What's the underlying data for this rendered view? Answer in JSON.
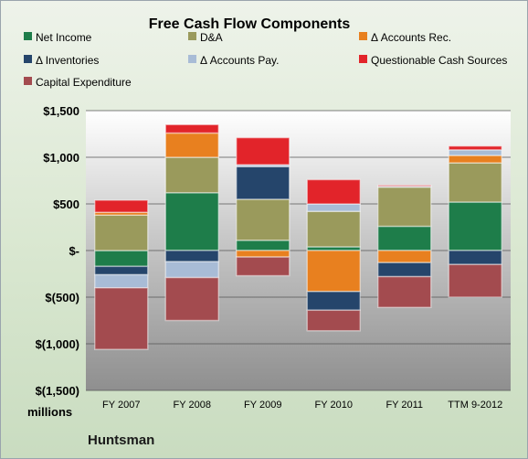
{
  "chart_data": {
    "type": "bar",
    "stacked": true,
    "title": "Free Cash Flow Components",
    "categories": [
      "FY 2007",
      "FY 2008",
      "FY 2009",
      "FY 2010",
      "FY 2011",
      "TTM 9-2012"
    ],
    "ylim": [
      -1500,
      1500
    ],
    "yticks": [
      1500,
      1000,
      500,
      0,
      -500,
      -1000,
      -1500
    ],
    "ytick_labels": [
      "$1,500",
      "$1,000",
      "$500",
      "$-",
      "$(500)",
      "$(1,000)",
      "$(1,500)"
    ],
    "unit_label": "millions",
    "footer_label": "Huntsman",
    "grid": true,
    "legend_position": "top",
    "series": [
      {
        "name": "Net Income",
        "color": "#1e7d4a",
        "values": [
          -170,
          620,
          110,
          40,
          260,
          520
        ]
      },
      {
        "name": "D&A",
        "color": "#9a9a5c",
        "values": [
          380,
          380,
          440,
          380,
          420,
          420
        ]
      },
      {
        "name": "Δ Accounts Rec.",
        "color": "#e8801f",
        "values": [
          30,
          260,
          -70,
          -440,
          -130,
          80
        ]
      },
      {
        "name": "Δ Inventories",
        "color": "#25456b",
        "values": [
          -90,
          -120,
          350,
          -200,
          -150,
          -150
        ]
      },
      {
        "name": "Δ Accounts Pay.",
        "color": "#a8bcd6",
        "values": [
          -140,
          -170,
          20,
          80,
          10,
          60
        ]
      },
      {
        "name": "Questionable Cash Sources",
        "color": "#e2242a",
        "values": [
          130,
          90,
          290,
          260,
          10,
          40
        ]
      },
      {
        "name": "Capital Expenditure",
        "color": "#a34b4f",
        "values": [
          -660,
          -460,
          -200,
          -220,
          -330,
          -350
        ]
      }
    ]
  }
}
